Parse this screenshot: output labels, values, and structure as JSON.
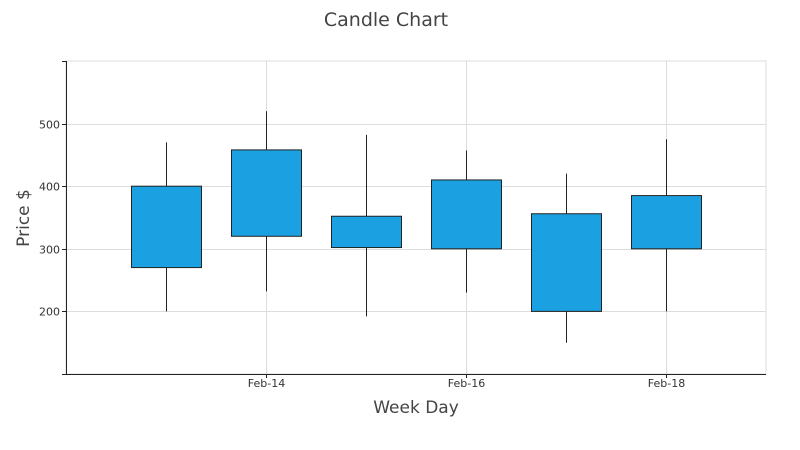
{
  "chart_data": {
    "type": "candlestick",
    "title": "Candle Chart",
    "xlabel": "Week Day",
    "ylabel": "Price $",
    "x_ticks": [
      {
        "index": 1,
        "label": "Feb-14"
      },
      {
        "index": 3,
        "label": "Feb-16"
      },
      {
        "index": 5,
        "label": "Feb-18"
      }
    ],
    "y_ticks": [
      200,
      300,
      400,
      500
    ],
    "ylim": [
      100,
      600
    ],
    "xlim": [
      -1,
      6
    ],
    "grid": true,
    "legend": "none",
    "candle_color": "#1ba1e2",
    "candle_border": "#222222",
    "candles": [
      {
        "date": "Feb-13",
        "open": 270,
        "high": 470,
        "low": 200,
        "close": 400
      },
      {
        "date": "Feb-14",
        "open": 320,
        "high": 520,
        "low": 232,
        "close": 458
      },
      {
        "date": "Feb-15",
        "open": 302,
        "high": 482,
        "low": 192,
        "close": 352
      },
      {
        "date": "Feb-16",
        "open": 300,
        "high": 457,
        "low": 230,
        "close": 410
      },
      {
        "date": "Feb-17",
        "open": 356,
        "high": 420,
        "low": 150,
        "close": 200
      },
      {
        "date": "Feb-18",
        "open": 300,
        "high": 475,
        "low": 200,
        "close": 385
      }
    ]
  }
}
